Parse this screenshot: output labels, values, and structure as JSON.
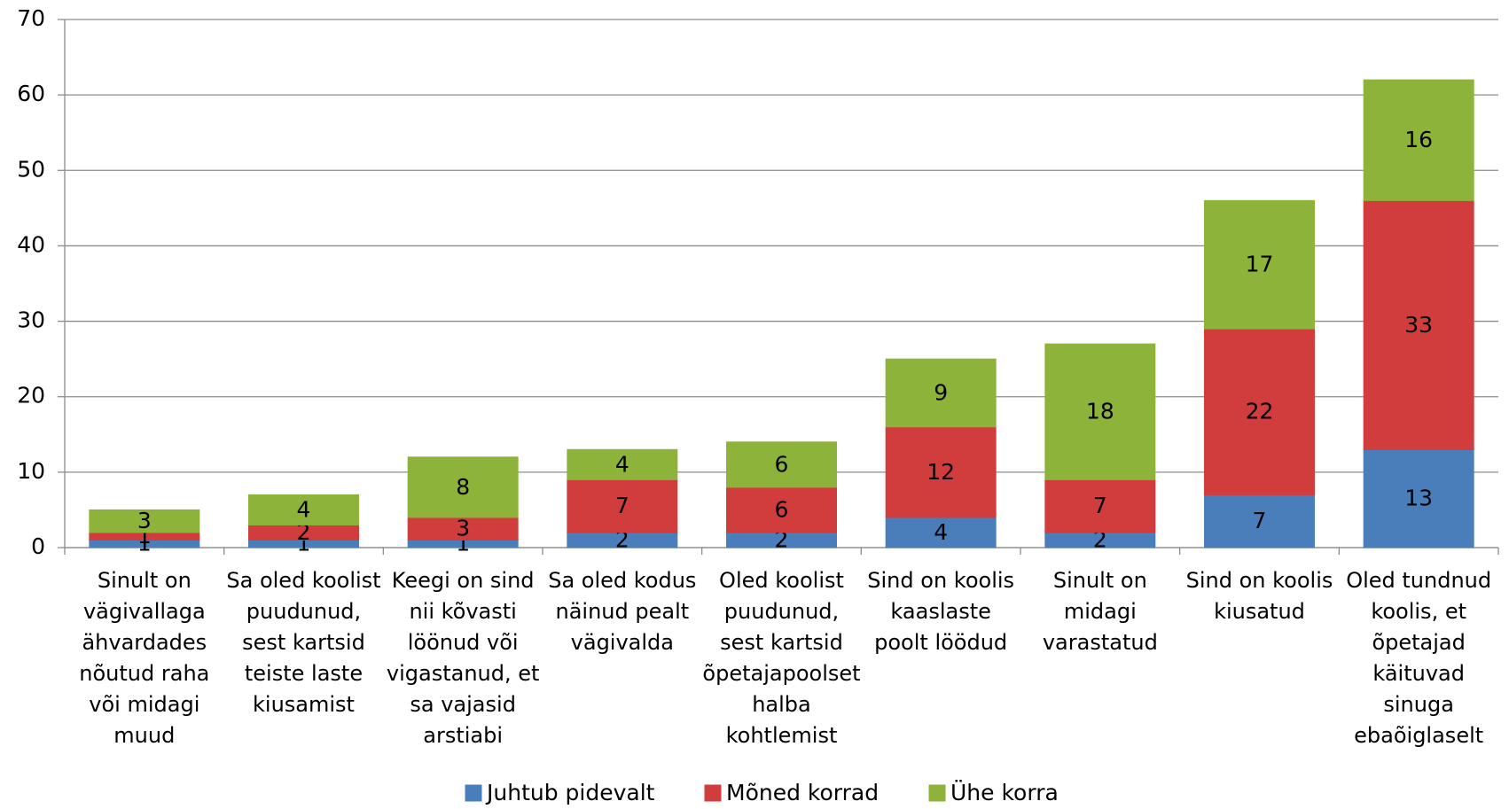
{
  "chart_data": {
    "type": "bar",
    "stacked": true,
    "categories": [
      "Sinult on vägivallaga ähvardades nõutud raha või midagi muud",
      "Sa oled koolist puudunud, sest kartsid teiste laste kiusamist",
      "Keegi on sind nii kõvasti löönud või vigastanud, et sa vajasid arstiabi",
      "Sa oled kodus näinud pealt vägivalda",
      "Oled koolist puudunud, sest kartsid õpetajapoolset halba kohtlemist",
      "Sind on koolis kaaslaste poolt löödud",
      "Sinult on midagi varastatud",
      "Sind on koolis kiusatud",
      "Oled tundnud koolis, et õpetajad käituvad sinuga ebaõiglaselt"
    ],
    "series": [
      {
        "name": "Juhtub pidevalt",
        "color": "#4a7ebb",
        "values": [
          1,
          1,
          1,
          2,
          2,
          4,
          2,
          7,
          13
        ]
      },
      {
        "name": "Mõned korrad",
        "color": "#d13c3c",
        "values": [
          1,
          2,
          3,
          7,
          6,
          12,
          7,
          22,
          33
        ]
      },
      {
        "name": "Ühe korra",
        "color": "#8db33a",
        "values": [
          3,
          4,
          8,
          4,
          6,
          9,
          18,
          17,
          16
        ]
      }
    ],
    "ylim": [
      0,
      70
    ],
    "yticks": [
      0,
      10,
      20,
      30,
      40,
      50,
      60,
      70
    ],
    "grid": true,
    "legend": "bottom"
  }
}
